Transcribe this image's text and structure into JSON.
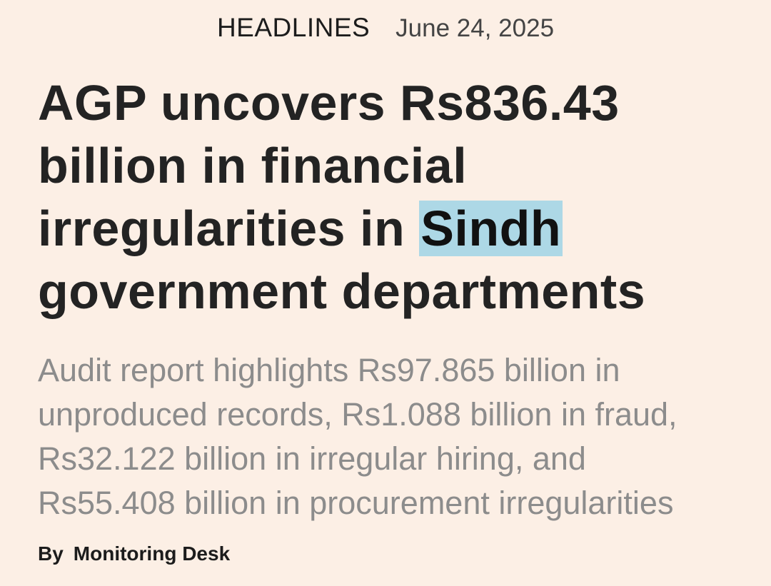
{
  "header": {
    "section": "HEADLINES",
    "date": "June 24, 2025"
  },
  "headline": {
    "lines": [
      "AGP uncovers Rs836.43",
      "billion in financial",
      "irregularities in",
      "government departments"
    ],
    "highlight": "Sindh"
  },
  "summary": {
    "lines": [
      "Audit report highlights Rs97.865 billion in",
      "unproduced records, Rs1.088 billion in fraud,",
      "Rs32.122 billion in irregular hiring, and",
      "Rs55.408 billion in procurement irregularities"
    ]
  },
  "byline": {
    "prefix": "By",
    "author": "Monitoring Desk"
  }
}
